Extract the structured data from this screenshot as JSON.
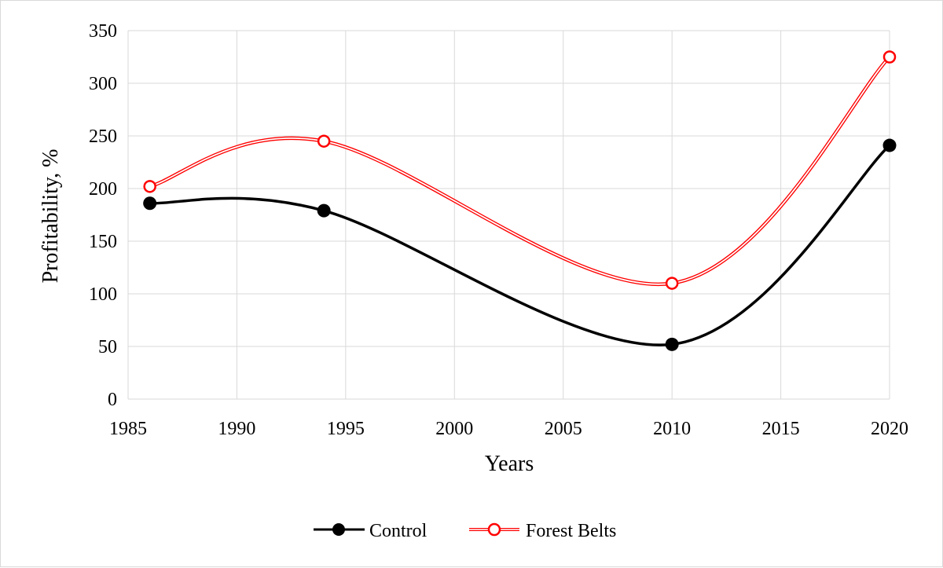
{
  "chart_data": {
    "type": "line",
    "title": "",
    "xlabel": "Years",
    "ylabel": "Profitability, %",
    "xlim": [
      1985,
      2020
    ],
    "ylim": [
      0,
      350
    ],
    "x_ticks": [
      1985,
      1990,
      1995,
      2000,
      2005,
      2010,
      2015,
      2020
    ],
    "y_ticks": [
      0,
      50,
      100,
      150,
      200,
      250,
      300,
      350
    ],
    "grid": true,
    "smooth": true,
    "legend_position": "bottom",
    "series": [
      {
        "name": "Control",
        "x": [
          1986,
          1994,
          2010,
          2020
        ],
        "values": [
          186,
          179,
          52,
          241
        ],
        "color": "#000000",
        "marker": "filled-circle"
      },
      {
        "name": "Forest Belts",
        "x": [
          1986,
          1994,
          2010,
          2020
        ],
        "values": [
          202,
          245,
          110,
          325
        ],
        "color": "#ff0000",
        "marker": "open-circle"
      }
    ]
  }
}
